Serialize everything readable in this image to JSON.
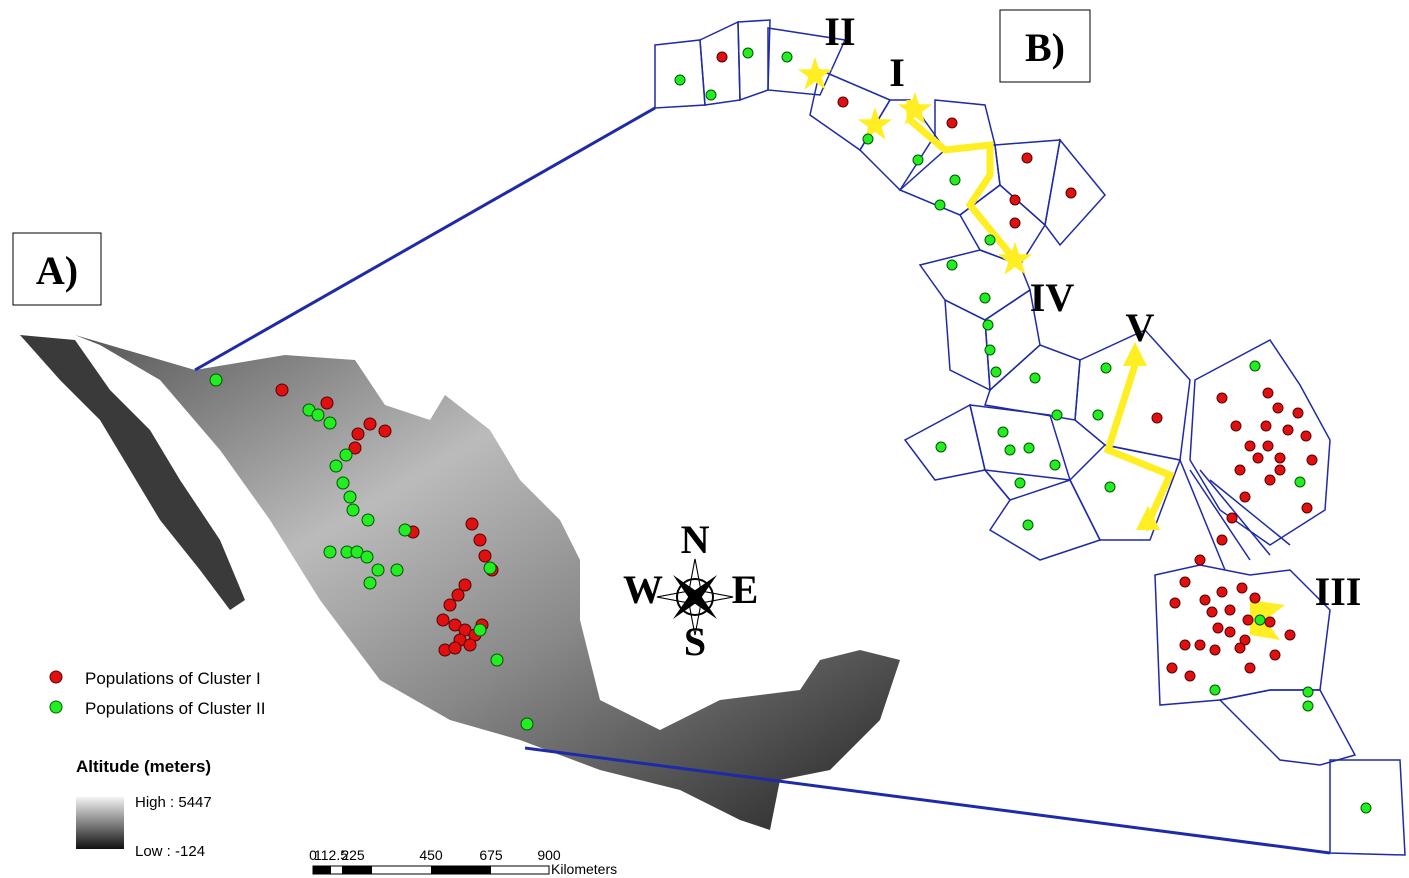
{
  "panel_a": {
    "label": "A)",
    "legend": {
      "cluster_1": "Populations of Cluster I",
      "cluster_2": "Populations of Cluster II"
    },
    "altitude": {
      "title": "Altitude (meters)",
      "high": "High : 5447",
      "low": "Low : -124"
    },
    "scale_bar": {
      "labels": [
        "0",
        "112.5",
        "225",
        "450",
        "675",
        "900"
      ],
      "unit": "Kilometers"
    },
    "compass": {
      "n": "N",
      "s": "S",
      "e": "E",
      "w": "W"
    }
  },
  "panel_b": {
    "label": "B)",
    "barriers": [
      "II",
      "I",
      "IV",
      "V",
      "III"
    ]
  }
}
